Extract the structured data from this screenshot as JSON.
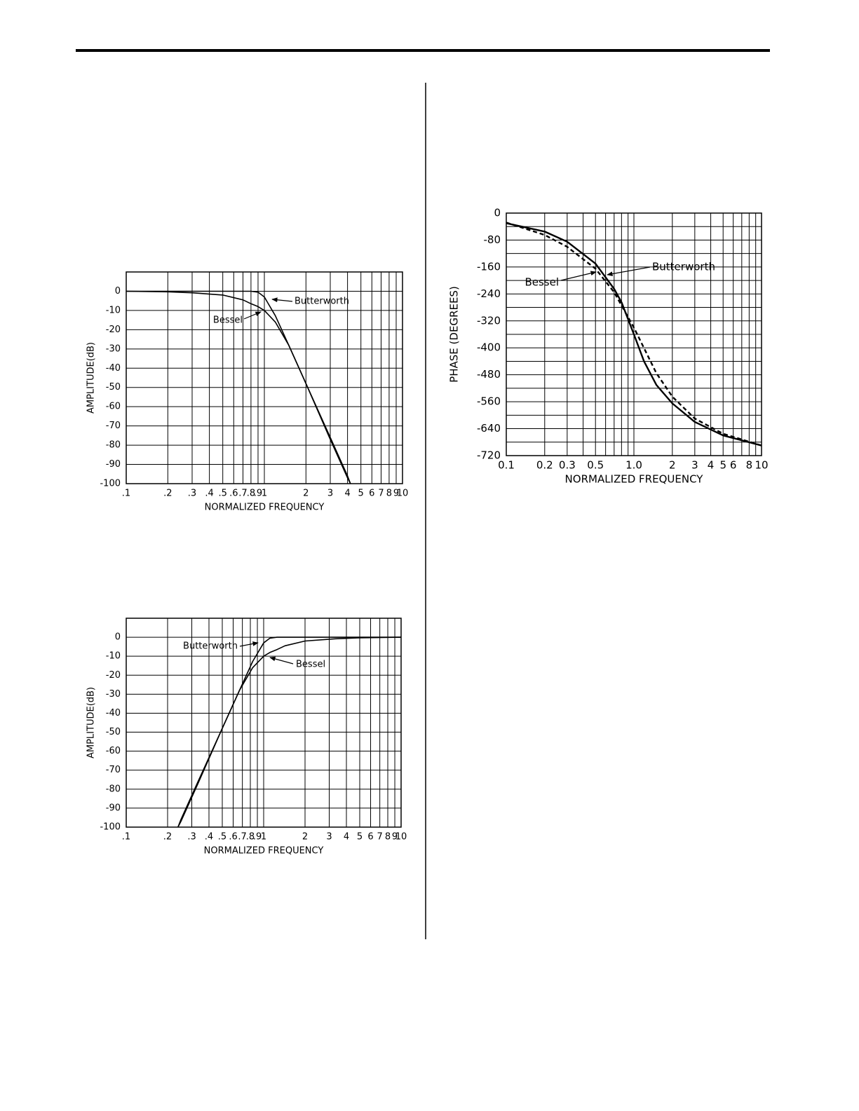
{
  "chart_data": [
    {
      "type": "line",
      "xscale": "log",
      "grid": true,
      "x_label": "NORMALIZED FREQUENCY",
      "y_label": "AMPLITUDE(dB)",
      "xlim": [
        0.1,
        10
      ],
      "ylim": [
        -100,
        10
      ],
      "xticks": [
        {
          "value": 0.1,
          "label": ".1"
        },
        {
          "value": 0.2,
          "label": ".2"
        },
        {
          "value": 0.3,
          "label": ".3"
        },
        {
          "value": 0.4,
          "label": ".4"
        },
        {
          "value": 0.5,
          "label": ".5"
        },
        {
          "value": 0.6,
          "label": ".6"
        },
        {
          "value": 0.7,
          "label": ".7"
        },
        {
          "value": 0.8,
          "label": ".8"
        },
        {
          "value": 0.9,
          "label": ".9"
        },
        1,
        2,
        3,
        4,
        5,
        6,
        7,
        8,
        9,
        10
      ],
      "yticks": [
        0,
        -10,
        -20,
        -30,
        -40,
        -50,
        -60,
        -70,
        -80,
        -90,
        -100
      ],
      "series": [
        {
          "name": "Butterworth",
          "color": "#000000",
          "dash": false,
          "x": [
            0.1,
            0.2,
            0.5,
            0.7,
            0.8,
            0.9,
            1,
            1.2,
            1.5,
            2,
            3,
            4,
            4.2
          ],
          "values": [
            0,
            0,
            0,
            0,
            0,
            -0.5,
            -3,
            -12.7,
            -28,
            -48,
            -76,
            -96,
            -100
          ]
        },
        {
          "name": "Bessel",
          "color": "#000000",
          "dash": false,
          "x": [
            0.1,
            0.2,
            0.3,
            0.5,
            0.7,
            0.8,
            0.9,
            1,
            1.2,
            1.5,
            2,
            3,
            4,
            4.2
          ],
          "values": [
            0,
            -0.3,
            -0.8,
            -2,
            -4.5,
            -6.5,
            -8,
            -10,
            -16,
            -28,
            -48,
            -77,
            -97,
            -100
          ]
        }
      ]
    },
    {
      "type": "line",
      "xscale": "log",
      "grid": true,
      "x_label": "NORMALIZED FREQUENCY",
      "y_label": "AMPLITUDE(dB)",
      "xlim": [
        0.1,
        10
      ],
      "ylim": [
        -100,
        10
      ],
      "xticks": [
        {
          "value": 0.1,
          "label": ".1"
        },
        {
          "value": 0.2,
          "label": ".2"
        },
        {
          "value": 0.3,
          "label": ".3"
        },
        {
          "value": 0.4,
          "label": ".4"
        },
        {
          "value": 0.5,
          "label": ".5"
        },
        {
          "value": 0.6,
          "label": ".6"
        },
        {
          "value": 0.7,
          "label": ".7"
        },
        {
          "value": 0.8,
          "label": ".8"
        },
        {
          "value": 0.9,
          "label": ".9"
        },
        1,
        2,
        3,
        4,
        5,
        6,
        7,
        8,
        9,
        10
      ],
      "yticks": [
        0,
        -10,
        -20,
        -30,
        -40,
        -50,
        -60,
        -70,
        -80,
        -90,
        -100
      ],
      "series": [
        {
          "name": "Butterworth",
          "color": "#000000",
          "dash": false,
          "x": [
            0.238,
            0.25,
            0.333,
            0.5,
            0.667,
            0.833,
            1,
            1.111,
            1.25,
            2,
            5,
            10
          ],
          "values": [
            -100,
            -96,
            -76,
            -48,
            -28,
            -12.7,
            -3,
            -0.5,
            0,
            0,
            0,
            0
          ]
        },
        {
          "name": "Bessel",
          "color": "#000000",
          "dash": false,
          "x": [
            0.238,
            0.25,
            0.333,
            0.5,
            0.667,
            0.833,
            1,
            1.111,
            1.25,
            1.43,
            2,
            3.33,
            5,
            10
          ],
          "values": [
            -100,
            -97,
            -77,
            -48,
            -28,
            -16,
            -10,
            -8,
            -6.5,
            -4.5,
            -2,
            -0.8,
            -0.3,
            0
          ]
        }
      ]
    },
    {
      "type": "line",
      "xscale": "log",
      "grid": true,
      "x_label": "NORMALIZED FREQUENCY",
      "y_label": "PHASE (DEGREES)",
      "xlim": [
        0.1,
        10
      ],
      "ylim": [
        -720,
        0
      ],
      "xticks": [
        0.1,
        0.2,
        0.3,
        0.5,
        {
          "value": 1,
          "label": "1.0"
        },
        2,
        3,
        4,
        5,
        6,
        8,
        10
      ],
      "minor_xticks": [
        0.4,
        0.6,
        0.7,
        0.8,
        0.9,
        7,
        9
      ],
      "yticks": [
        0,
        -80,
        -160,
        -240,
        -320,
        -400,
        -480,
        -560,
        -640,
        -720
      ],
      "minor_yticks": [
        -40,
        -120,
        -200,
        -280,
        -360,
        -440,
        -520,
        -600,
        -680
      ],
      "series": [
        {
          "name": "Butterworth",
          "color": "#000000",
          "dash": false,
          "x": [
            0.1,
            0.2,
            0.3,
            0.5,
            0.7,
            0.8,
            1,
            1.2,
            1.5,
            2,
            3,
            5,
            10
          ],
          "values": [
            -30,
            -55,
            -85,
            -150,
            -225,
            -265,
            -360,
            -440,
            -510,
            -565,
            -620,
            -660,
            -690
          ]
        },
        {
          "name": "Bessel",
          "color": "#000000",
          "dash": true,
          "x": [
            0.1,
            0.2,
            0.3,
            0.5,
            0.7,
            1,
            1.5,
            2,
            3,
            5,
            10
          ],
          "values": [
            -28,
            -65,
            -100,
            -165,
            -235,
            -340,
            -475,
            -545,
            -610,
            -655,
            -690
          ]
        }
      ]
    }
  ]
}
